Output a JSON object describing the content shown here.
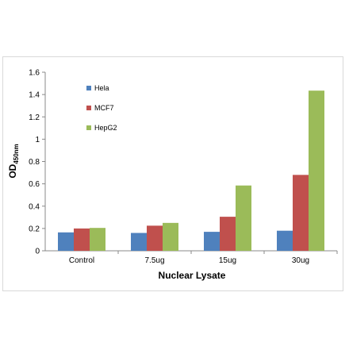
{
  "chart_data": {
    "type": "bar",
    "title": "",
    "xlabel": "Nuclear Lysate",
    "ylabel_main": "OD",
    "ylabel_sub": "450nm",
    "ylim": [
      0,
      1.6
    ],
    "yticks": [
      "0",
      "0.2",
      "0.4",
      "0.6",
      "0.8",
      "1",
      "1.2",
      "1.4",
      "1.6"
    ],
    "categories": [
      "Control",
      "7.5ug",
      "15ug",
      "30ug"
    ],
    "series": [
      {
        "name": "Hela",
        "color": "#4f81bd",
        "values": [
          0.165,
          0.16,
          0.17,
          0.18
        ]
      },
      {
        "name": "MCF7",
        "color": "#c0504d",
        "values": [
          0.2,
          0.225,
          0.305,
          0.68
        ]
      },
      {
        "name": "HepG2",
        "color": "#9bbb59",
        "values": [
          0.205,
          0.25,
          0.585,
          1.435
        ]
      }
    ],
    "legend_position": "top-left",
    "grid": false
  }
}
